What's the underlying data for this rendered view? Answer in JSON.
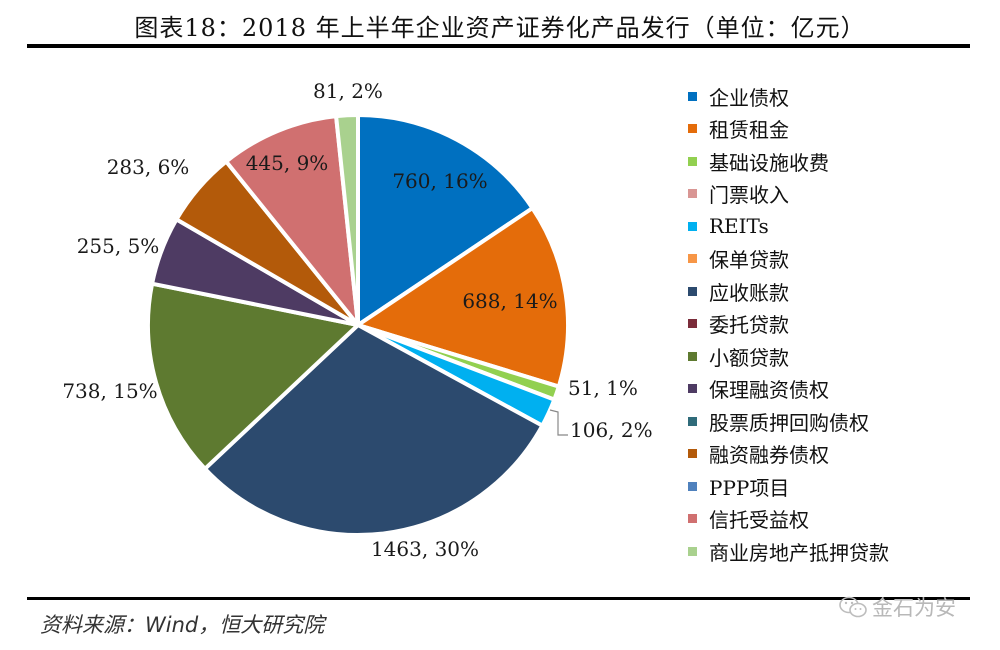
{
  "header": {
    "title": "图表18：2018 年上半年企业资产证券化产品发行（单位：亿元）"
  },
  "footer": {
    "source": "资料来源：Wind，恒大研究院",
    "watermark": "金石为安"
  },
  "chart_data": {
    "type": "pie",
    "title": "图表18：2018 年上半年企业资产证券化产品发行（单位：亿元）",
    "legend_position": "right",
    "slices": [
      {
        "name": "企业债权",
        "value": 760,
        "percent": "16%",
        "label": "760, 16%",
        "color": "#0070C0"
      },
      {
        "name": "租赁租金",
        "value": 688,
        "percent": "14%",
        "label": "688, 14%",
        "color": "#E46C0A"
      },
      {
        "name": "基础设施收费",
        "value": 51,
        "percent": "1%",
        "label": "51, 1%",
        "color": "#92D050"
      },
      {
        "name": "门票收入",
        "value": 0,
        "percent": "",
        "label": "",
        "color": "#D99694"
      },
      {
        "name": "REITs",
        "value": 106,
        "percent": "2%",
        "label": "106, 2%",
        "color": "#00B0F0"
      },
      {
        "name": "保单贷款",
        "value": 0,
        "percent": "",
        "label": "",
        "color": "#F79646"
      },
      {
        "name": "应收账款",
        "value": 1463,
        "percent": "30%",
        "label": "1463, 30%",
        "color": "#2C4A6E"
      },
      {
        "name": "委托贷款",
        "value": 0,
        "percent": "",
        "label": "",
        "color": "#7B2C3A"
      },
      {
        "name": "小额贷款",
        "value": 738,
        "percent": "15%",
        "label": "738, 15%",
        "color": "#5E7A30"
      },
      {
        "name": "保理融资债权",
        "value": 255,
        "percent": "5%",
        "label": "255, 5%",
        "color": "#4E3B63"
      },
      {
        "name": "股票质押回购债权",
        "value": 0,
        "percent": "",
        "label": "",
        "color": "#2F6B7A"
      },
      {
        "name": "融资融券债权",
        "value": 283,
        "percent": "6%",
        "label": "283, 6%",
        "color": "#B35A0A"
      },
      {
        "name": "PPP项目",
        "value": 0,
        "percent": "",
        "label": "",
        "color": "#4F81BD"
      },
      {
        "name": "信托受益权",
        "value": 445,
        "percent": "9%",
        "label": "445, 9%",
        "color": "#D07070"
      },
      {
        "name": "商业房地产抵押贷款",
        "value": 81,
        "percent": "2%",
        "label": "81, 2%",
        "color": "#A9D18E"
      }
    ]
  }
}
